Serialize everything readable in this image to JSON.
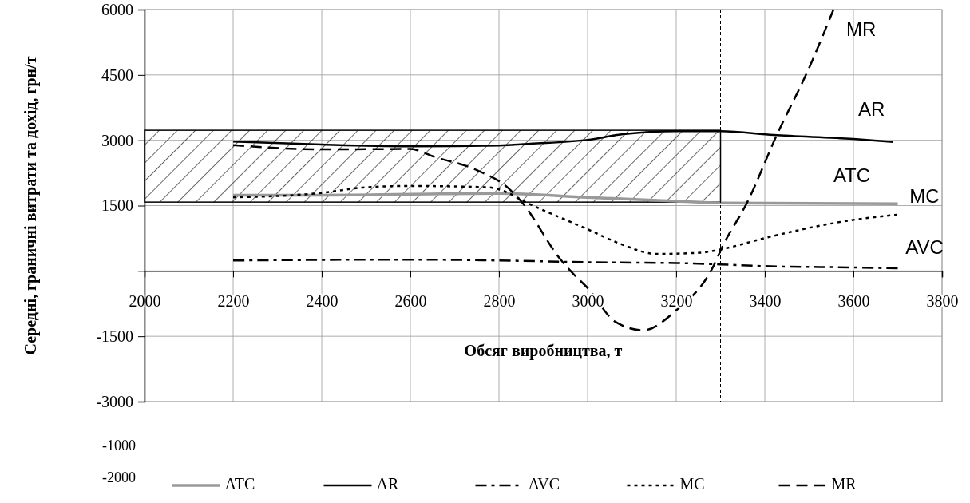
{
  "chart_data": {
    "type": "line",
    "xlabel": "Обсяг виробництва, т",
    "ylabel": "Середні, граничні витрати та дохід, грн/т",
    "xlim": [
      2000,
      3800
    ],
    "xticks": [
      2000,
      2200,
      2400,
      2600,
      2800,
      3000,
      3200,
      3400,
      3600,
      3800
    ],
    "ylim": [
      -3000,
      6000
    ],
    "yticks": [
      6000,
      4500,
      3000,
      1500,
      {
        "value": 0,
        "label": null
      },
      -1500,
      -3000
    ],
    "grid": true,
    "legend": "bottom",
    "series": [
      {
        "name": "ATC",
        "color": "#999999",
        "line_style": "solid",
        "x": [
          2200,
          2400,
          2600,
          2800,
          3000,
          3200,
          3300,
          3700
        ],
        "values": [
          1740,
          1740,
          1760,
          1780,
          1690,
          1600,
          1560,
          1540
        ]
      },
      {
        "name": "AR",
        "color": "#000000",
        "line_style": "solid",
        "x": [
          2200,
          2400,
          2600,
          2800,
          2870,
          3000,
          3080,
          3200,
          3300,
          3420,
          3600,
          3690
        ],
        "values": [
          2970,
          2900,
          2860,
          2880,
          2920,
          3010,
          3140,
          3210,
          3210,
          3120,
          3030,
          2960
        ]
      },
      {
        "name": "AVC",
        "color": "#000000",
        "line_style": "dashdot",
        "x": [
          2200,
          2600,
          2800,
          3000,
          3200,
          3300,
          3400,
          3600,
          3700
        ],
        "values": [
          240,
          260,
          240,
          200,
          180,
          150,
          110,
          80,
          60
        ]
      },
      {
        "name": "MC",
        "color": "#000000",
        "line_style": "dotted",
        "x": [
          2200,
          2300,
          2400,
          2500,
          2600,
          2775,
          2800,
          2868,
          2997,
          3077,
          3155,
          3256,
          3303,
          3402,
          3605,
          3699
        ],
        "values": [
          1690,
          1720,
          1790,
          1920,
          1950,
          1920,
          1870,
          1540,
          970,
          610,
          390,
          420,
          500,
          760,
          1180,
          1290
        ]
      },
      {
        "name": "MR",
        "color": "#000000",
        "line_style": "dashed",
        "x": [
          2200,
          2400,
          2600,
          2654,
          2751,
          2820,
          2849,
          2940,
          2970,
          3000,
          3063,
          3126,
          3198,
          3285,
          3303,
          3362,
          3427,
          3499,
          3555
        ],
        "values": [
          2890,
          2790,
          2800,
          2620,
          2310,
          1910,
          1610,
          250,
          -90,
          -390,
          -1170,
          -1360,
          -920,
          130,
          530,
          1610,
          3120,
          4640,
          6000
        ]
      }
    ],
    "bands": [
      {
        "axis": "y",
        "from": 1580,
        "to": 3230,
        "color": "#000000"
      }
    ],
    "ref_lines": [
      {
        "axis": "x",
        "value": 3300,
        "color": "#000000",
        "line_style": "dashed"
      }
    ],
    "annotations": [
      "MR",
      "AR",
      "ATC",
      "MC",
      "AVC",
      "-1000",
      "-2000"
    ]
  }
}
